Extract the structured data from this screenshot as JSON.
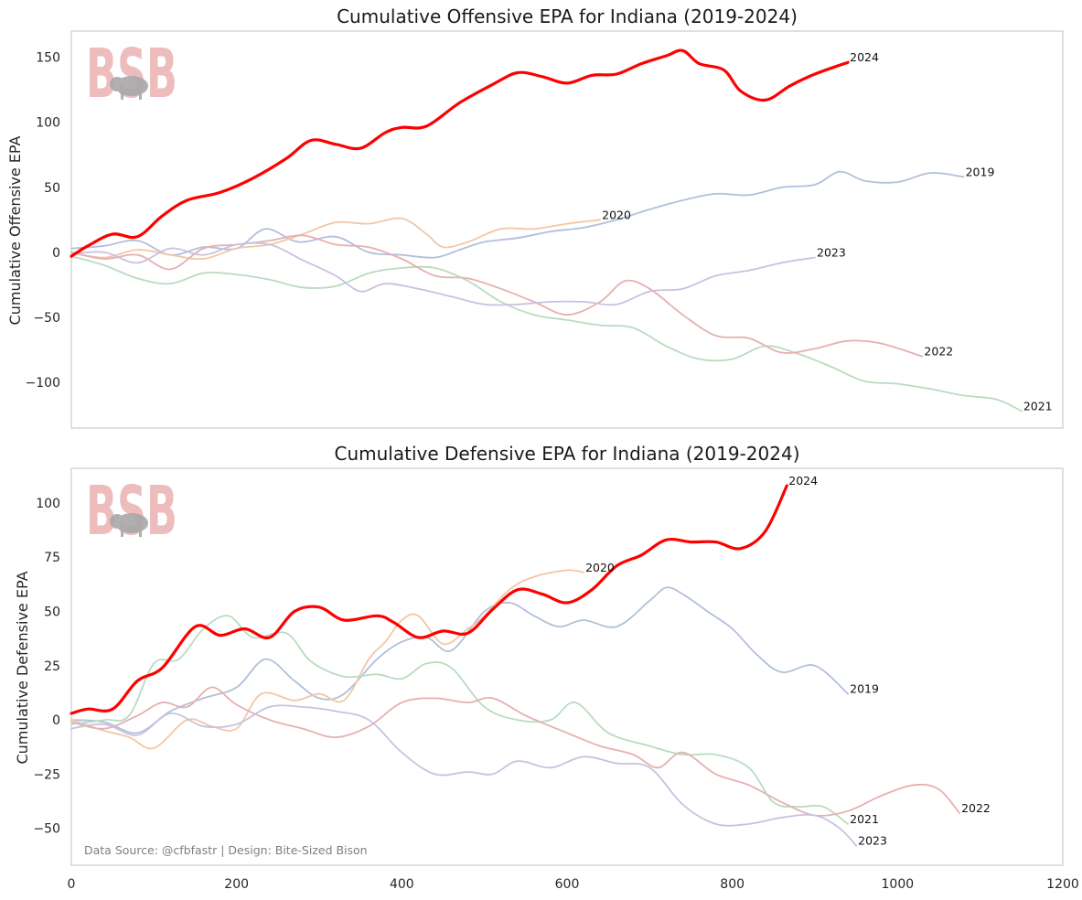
{
  "chart_data": [
    {
      "type": "line",
      "title": "Cumulative Offensive EPA for Indiana (2019-2024)",
      "xlabel": "",
      "ylabel": "Cumulative Offensive EPA",
      "xlim": [
        0,
        1200
      ],
      "ylim": [
        -135,
        170
      ],
      "xticks": [
        "0",
        "200",
        "400",
        "600",
        "800",
        "1000",
        "1200"
      ],
      "yticks": [
        {
          "value": 150,
          "label": "150"
        },
        {
          "value": 100,
          "label": "100"
        },
        {
          "value": 50,
          "label": "50"
        },
        {
          "value": 0,
          "label": "0"
        },
        {
          "value": -50,
          "label": "−50"
        },
        {
          "value": -100,
          "label": "−100"
        }
      ],
      "grid": false,
      "logo_text": "BSB",
      "series": [
        {
          "name": "2019",
          "color": "#b0c0dc",
          "width": 1.8,
          "x": [
            0,
            40,
            80,
            120,
            160,
            200,
            235,
            275,
            320,
            360,
            400,
            440,
            470,
            500,
            540,
            580,
            620,
            660,
            700,
            740,
            780,
            820,
            860,
            900,
            930,
            960,
            1000,
            1040,
            1080
          ],
          "y": [
            3,
            5,
            9,
            -2,
            4,
            3,
            18,
            8,
            12,
            0,
            -2,
            -4,
            2,
            8,
            11,
            16,
            19,
            25,
            33,
            40,
            45,
            44,
            50,
            52,
            62,
            55,
            54,
            61,
            58
          ]
        },
        {
          "name": "2020",
          "color": "#f2c7a6",
          "width": 1.8,
          "x": [
            0,
            40,
            80,
            120,
            160,
            200,
            240,
            280,
            320,
            360,
            400,
            430,
            450,
            480,
            520,
            560,
            600,
            640
          ],
          "y": [
            0,
            -4,
            2,
            -2,
            -5,
            3,
            6,
            14,
            23,
            22,
            26,
            14,
            4,
            8,
            18,
            18,
            22,
            25
          ]
        },
        {
          "name": "2021",
          "color": "#b8dcbf",
          "width": 1.8,
          "x": [
            0,
            40,
            80,
            120,
            160,
            200,
            240,
            280,
            320,
            360,
            400,
            440,
            480,
            520,
            560,
            600,
            640,
            680,
            720,
            760,
            800,
            840,
            880,
            920,
            960,
            1000,
            1040,
            1080,
            1120,
            1150
          ],
          "y": [
            -3,
            -10,
            -20,
            -24,
            -16,
            -17,
            -21,
            -27,
            -26,
            -16,
            -12,
            -12,
            -22,
            -38,
            -48,
            -52,
            -56,
            -58,
            -72,
            -82,
            -82,
            -72,
            -78,
            -88,
            -99,
            -101,
            -105,
            -110,
            -113,
            -122
          ]
        },
        {
          "name": "2022",
          "color": "#e6b0b0",
          "width": 1.8,
          "x": [
            0,
            40,
            80,
            120,
            160,
            200,
            240,
            280,
            320,
            360,
            400,
            440,
            480,
            520,
            560,
            600,
            640,
            670,
            700,
            740,
            780,
            820,
            860,
            900,
            940,
            980,
            1030
          ],
          "y": [
            0,
            -5,
            -2,
            -13,
            3,
            6,
            9,
            13,
            6,
            4,
            -5,
            -18,
            -20,
            -28,
            -38,
            -48,
            -38,
            -22,
            -28,
            -48,
            -64,
            -66,
            -77,
            -74,
            -68,
            -70,
            -80
          ]
        },
        {
          "name": "2023",
          "color": "#c8c2e0",
          "width": 1.8,
          "x": [
            0,
            40,
            80,
            120,
            160,
            200,
            240,
            280,
            320,
            350,
            380,
            420,
            460,
            500,
            540,
            580,
            620,
            660,
            700,
            740,
            780,
            820,
            860,
            900
          ],
          "y": [
            -1,
            0,
            -8,
            3,
            -2,
            6,
            6,
            -6,
            -18,
            -30,
            -24,
            -28,
            -34,
            -40,
            -40,
            -38,
            -38,
            -40,
            -30,
            -28,
            -18,
            -14,
            -8,
            -4
          ]
        },
        {
          "name": "2024",
          "color": "#ff0000",
          "width": 3.2,
          "x": [
            0,
            20,
            50,
            80,
            110,
            140,
            180,
            220,
            260,
            290,
            320,
            350,
            380,
            400,
            430,
            470,
            510,
            540,
            570,
            600,
            630,
            660,
            690,
            720,
            740,
            760,
            790,
            810,
            840,
            870,
            900,
            940
          ],
          "y": [
            -3,
            5,
            14,
            12,
            28,
            40,
            46,
            57,
            72,
            86,
            83,
            80,
            92,
            96,
            97,
            115,
            129,
            138,
            135,
            130,
            136,
            137,
            145,
            151,
            155,
            145,
            140,
            124,
            117,
            128,
            137,
            146
          ]
        }
      ]
    },
    {
      "type": "line",
      "title": "Cumulative Defensive EPA for Indiana (2019-2024)",
      "xlabel": "",
      "ylabel": "Cumulative Defensive EPA",
      "xlim": [
        0,
        1200
      ],
      "ylim": [
        -67,
        116
      ],
      "xticks": [
        "0",
        "200",
        "400",
        "600",
        "800",
        "1000",
        "1200"
      ],
      "yticks": [
        {
          "value": 100,
          "label": "100"
        },
        {
          "value": 75,
          "label": "75"
        },
        {
          "value": 50,
          "label": "50"
        },
        {
          "value": 25,
          "label": "25"
        },
        {
          "value": 0,
          "label": "0"
        },
        {
          "value": -25,
          "label": "−25"
        },
        {
          "value": -50,
          "label": "−50"
        }
      ],
      "grid": false,
      "logo_text": "BSB",
      "source_note": "Data Source: @cfbfastr | Design: Bite-Sized Bison",
      "series": [
        {
          "name": "2019",
          "color": "#b0c0dc",
          "width": 1.8,
          "x": [
            0,
            40,
            80,
            120,
            160,
            200,
            235,
            270,
            300,
            330,
            370,
            400,
            430,
            460,
            500,
            530,
            560,
            590,
            620,
            660,
            700,
            720,
            740,
            770,
            800,
            830,
            860,
            900,
            940
          ],
          "y": [
            0,
            -1,
            -6,
            4,
            10,
            15,
            28,
            18,
            10,
            12,
            28,
            36,
            38,
            32,
            50,
            54,
            48,
            43,
            46,
            43,
            55,
            61,
            58,
            50,
            42,
            30,
            22,
            25,
            12
          ]
        },
        {
          "name": "2020",
          "color": "#f2c7a6",
          "width": 1.8,
          "x": [
            0,
            40,
            70,
            100,
            140,
            170,
            200,
            230,
            270,
            300,
            330,
            360,
            380,
            400,
            420,
            450,
            480,
            500,
            530,
            560,
            600,
            620
          ],
          "y": [
            0,
            -5,
            -8,
            -13,
            0,
            -3,
            -4,
            12,
            9,
            12,
            9,
            28,
            36,
            46,
            48,
            35,
            42,
            48,
            60,
            66,
            69,
            68
          ]
        },
        {
          "name": "2021",
          "color": "#b8dcbf",
          "width": 1.8,
          "x": [
            0,
            40,
            70,
            100,
            130,
            160,
            190,
            220,
            260,
            290,
            330,
            370,
            400,
            430,
            460,
            500,
            540,
            580,
            610,
            650,
            700,
            740,
            780,
            820,
            850,
            880,
            910,
            940
          ],
          "y": [
            -2,
            0,
            2,
            26,
            28,
            42,
            48,
            38,
            40,
            27,
            20,
            21,
            19,
            26,
            24,
            6,
            0,
            0,
            8,
            -6,
            -12,
            -16,
            -16,
            -22,
            -38,
            -40,
            -40,
            -48
          ]
        },
        {
          "name": "2022",
          "color": "#e6b0b0",
          "width": 1.8,
          "x": [
            0,
            40,
            80,
            110,
            140,
            170,
            200,
            240,
            280,
            320,
            360,
            400,
            440,
            480,
            510,
            550,
            600,
            640,
            680,
            710,
            740,
            780,
            820,
            860,
            900,
            940,
            980,
            1020,
            1050,
            1075
          ],
          "y": [
            -1,
            -4,
            2,
            8,
            6,
            15,
            7,
            0,
            -4,
            -8,
            -3,
            8,
            10,
            8,
            10,
            2,
            -6,
            -12,
            -16,
            -22,
            -15,
            -25,
            -30,
            -38,
            -44,
            -42,
            -35,
            -30,
            -32,
            -43
          ]
        },
        {
          "name": "2023",
          "color": "#c8c2e0",
          "width": 1.8,
          "x": [
            0,
            40,
            80,
            120,
            160,
            200,
            240,
            280,
            320,
            360,
            400,
            440,
            480,
            510,
            540,
            580,
            620,
            660,
            700,
            740,
            780,
            820,
            860,
            900,
            930,
            950
          ],
          "y": [
            -4,
            -2,
            -7,
            3,
            -3,
            -2,
            6,
            6,
            4,
            0,
            -15,
            -25,
            -24,
            -25,
            -19,
            -22,
            -17,
            -20,
            -22,
            -39,
            -48,
            -48,
            -45,
            -44,
            -50,
            -58
          ]
        },
        {
          "name": "2024",
          "color": "#ff0000",
          "width": 3.2,
          "x": [
            0,
            20,
            50,
            80,
            110,
            150,
            180,
            210,
            240,
            270,
            300,
            330,
            370,
            390,
            420,
            450,
            480,
            510,
            540,
            570,
            600,
            630,
            660,
            690,
            720,
            750,
            780,
            810,
            840,
            866
          ],
          "y": [
            3,
            5,
            5,
            18,
            24,
            43,
            39,
            42,
            38,
            50,
            52,
            46,
            48,
            45,
            38,
            41,
            40,
            51,
            60,
            58,
            54,
            60,
            71,
            76,
            83,
            82,
            82,
            79,
            87,
            108
          ]
        }
      ]
    }
  ]
}
